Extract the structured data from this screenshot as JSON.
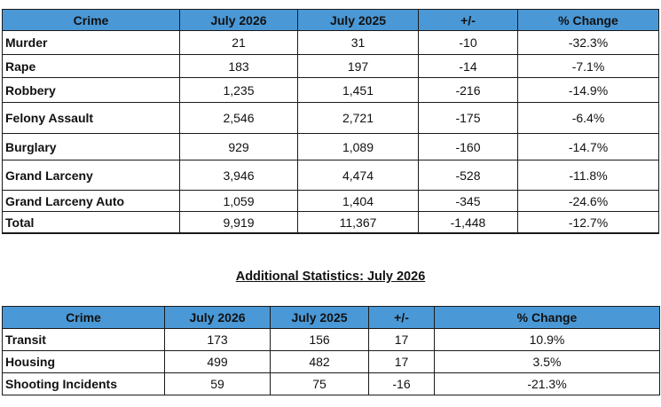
{
  "main_table": {
    "headers": [
      "Crime",
      "July 2026",
      "July 2025",
      "+/-",
      "% Change"
    ],
    "rows": [
      [
        "Murder",
        "21",
        "31",
        "-10",
        "-32.3%"
      ],
      [
        "Rape",
        "183",
        "197",
        "-14",
        "-7.1%"
      ],
      [
        "Robbery",
        "1,235",
        "1,451",
        "-216",
        "-14.9%"
      ],
      [
        "Felony Assault",
        "2,546",
        "2,721",
        "-175",
        "-6.4%"
      ],
      [
        "Burglary",
        "929",
        "1,089",
        "-160",
        "-14.7%"
      ],
      [
        "Grand Larceny",
        "3,946",
        "4,474",
        "-528",
        "-11.8%"
      ],
      [
        "Grand Larceny Auto",
        "1,059",
        "1,404",
        "-345",
        "-24.6%"
      ],
      [
        "Total",
        "9,919",
        "11,367",
        "-1,448",
        "-12.7%"
      ]
    ]
  },
  "additional": {
    "title": "Additional Statistics: July 2026",
    "headers": [
      "Crime",
      "July 2026",
      "July 2025",
      "+/-",
      "% Change"
    ],
    "rows": [
      [
        "Transit",
        "173",
        "156",
        "17",
        "10.9%"
      ],
      [
        "Housing",
        "499",
        "482",
        "17",
        "3.5%"
      ],
      [
        "Shooting Incidents",
        "59",
        "75",
        "-16",
        "-21.3%"
      ]
    ]
  },
  "colors": {
    "header_bg": "#4a98d6",
    "border": "#1a1a1a"
  }
}
